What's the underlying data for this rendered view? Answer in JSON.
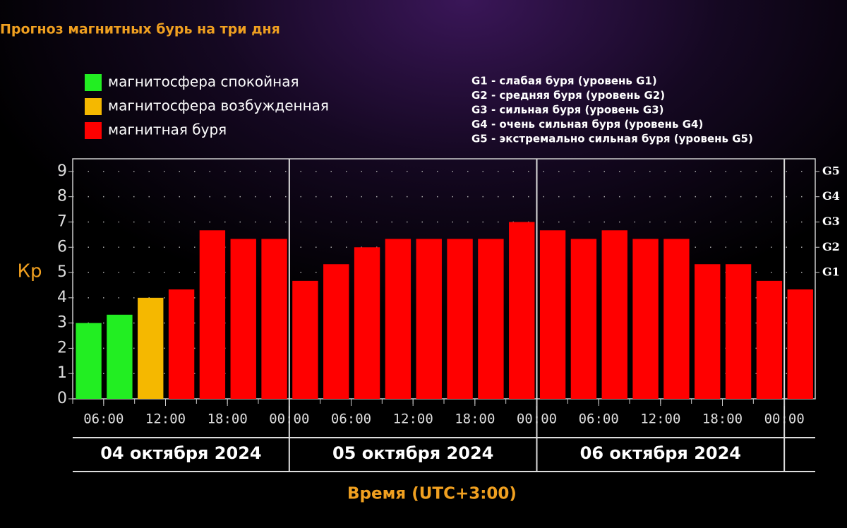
{
  "chart_data": {
    "type": "bar",
    "title": "Прогноз магнитных бурь на три дня",
    "ylabel": "Кр",
    "xlabel": "Время (UTC+3:00)",
    "x": [
      3,
      6,
      9,
      12,
      15,
      18,
      21,
      24,
      27,
      30,
      33,
      36,
      39,
      42,
      45,
      48,
      51,
      54,
      57,
      60,
      63,
      66,
      69,
      72
    ],
    "series": [
      {
        "name": "магнитосфера спокойная",
        "color": "#22ee22",
        "values": [
          3,
          3.33,
          null,
          null,
          null,
          null,
          null,
          null,
          null,
          null,
          null,
          null,
          null,
          null,
          null,
          null,
          null,
          null,
          null,
          null,
          null,
          null,
          null,
          null
        ]
      },
      {
        "name": "магнитосфера возбужденная",
        "color": "#f5b800",
        "values": [
          null,
          null,
          4,
          null,
          null,
          null,
          null,
          null,
          null,
          null,
          null,
          null,
          null,
          null,
          null,
          null,
          null,
          null,
          null,
          null,
          null,
          null,
          null,
          null
        ]
      },
      {
        "name": "магнитная буря",
        "color": "#ff0000",
        "values": [
          null,
          null,
          null,
          4.33,
          6.67,
          6.33,
          6.33,
          4.67,
          5.33,
          6,
          6.33,
          6.33,
          6.33,
          6.33,
          7,
          6.67,
          6.33,
          6.67,
          6.33,
          6.33,
          5.33,
          5.33,
          4.67,
          4.33
        ]
      }
    ],
    "xlim": [
      3,
      75
    ],
    "xticks": [
      {
        "value": 6,
        "label": "06:00"
      },
      {
        "value": 12,
        "label": "12:00"
      },
      {
        "value": 18,
        "label": "18:00"
      },
      {
        "value": 24,
        "label": "00:00"
      },
      {
        "value": 30,
        "label": "06:00"
      },
      {
        "value": 36,
        "label": "12:00"
      },
      {
        "value": 42,
        "label": "18:00"
      },
      {
        "value": 48,
        "label": "00:00"
      },
      {
        "value": 54,
        "label": "06:00"
      },
      {
        "value": 60,
        "label": "12:00"
      },
      {
        "value": 66,
        "label": "18:00"
      },
      {
        "value": 72,
        "label": "00:00"
      }
    ],
    "xlines": [
      24,
      48,
      72
    ],
    "days": [
      "04 октября 2024",
      "05 октября 2024",
      "06 октября 2024"
    ],
    "ylim": [
      0,
      9.5
    ],
    "yticks": [
      0,
      1,
      2,
      3,
      4,
      5,
      6,
      7,
      8,
      9
    ],
    "y2ticks": [
      {
        "value": 5,
        "label": "G1"
      },
      {
        "value": 6,
        "label": "G2"
      },
      {
        "value": 7,
        "label": "G3"
      },
      {
        "value": 8,
        "label": "G4"
      },
      {
        "value": 9,
        "label": "G5"
      }
    ],
    "scale_notes": [
      "G1 - слабая буря (уровень G1)",
      "G2 - средняя буря (уровень G2)",
      "G3 - сильная буря (уровень G3)",
      "G4 - очень сильная буря (уровень G4)",
      "G5 - экстремально сильная буря (уровень G5)"
    ],
    "grid": true
  }
}
